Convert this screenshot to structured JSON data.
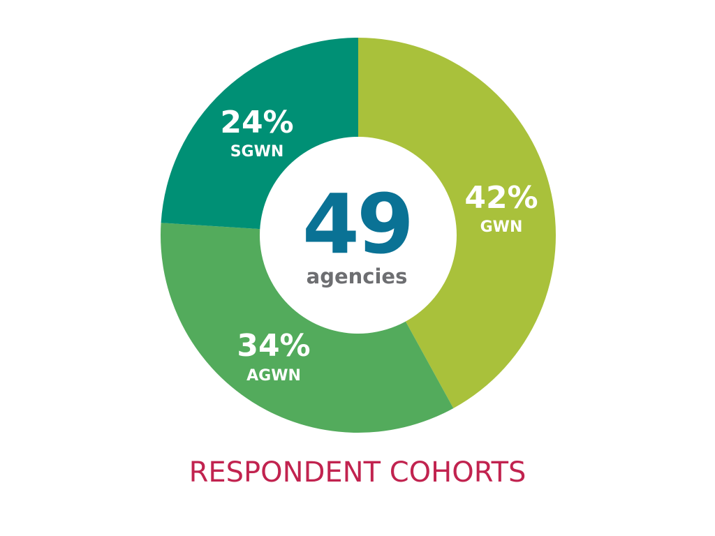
{
  "chart_data": {
    "type": "pie",
    "title": "RESPONDENT COHORTS",
    "center": {
      "value": "49",
      "label": "agencies"
    },
    "slices": [
      {
        "name": "GWN",
        "value": 42,
        "label": "42%",
        "color": "#a9c13b"
      },
      {
        "name": "AGWN",
        "value": 34,
        "label": "34%",
        "color": "#53ab5c"
      },
      {
        "name": "SGWN",
        "value": 24,
        "label": "24%",
        "color": "#009075"
      }
    ]
  },
  "colors": {
    "center_value": "#0a7295",
    "center_label": "#6d6e71",
    "title": "#c1234f",
    "hole": "#ffffff"
  }
}
